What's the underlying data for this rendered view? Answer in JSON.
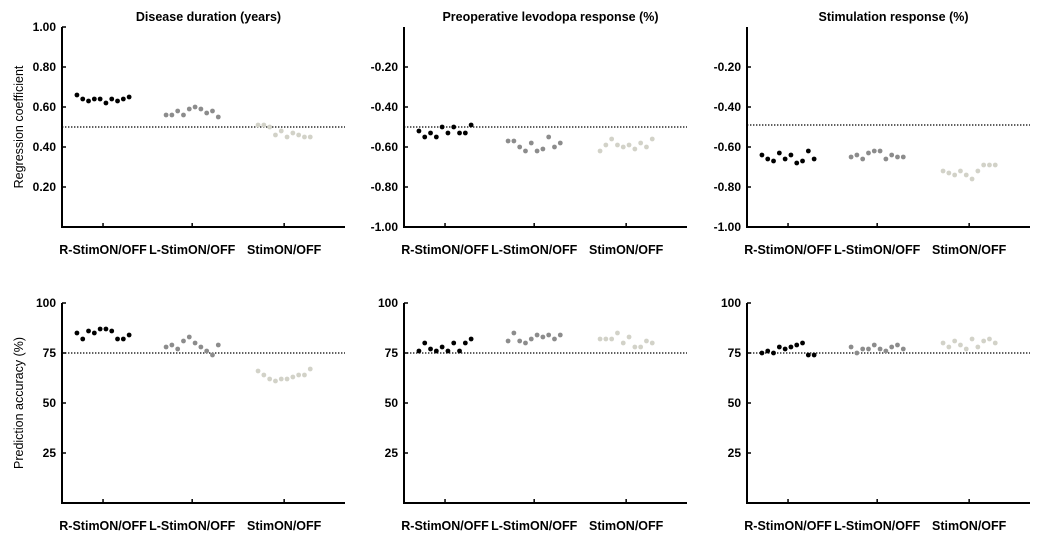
{
  "colors": {
    "R-StimON/OFF": "#000000",
    "L-StimON/OFF": "#8c8c8c",
    "StimON/OFF": "#d2d2c8",
    "axis": "#000000"
  },
  "chart_data": [
    {
      "type": "scatter",
      "row": 0,
      "col": 0,
      "title": "Disease duration (years)",
      "ylabel": "Regression coefficient",
      "ylim": [
        0,
        1.0
      ],
      "yticks": [
        0.2,
        0.4,
        0.6,
        0.8,
        1.0
      ],
      "ytick_labels": [
        "0.20",
        "0.40",
        "0.60",
        "0.80",
        "1.00"
      ],
      "categories": [
        "R-StimON/OFF",
        "L-StimON/OFF",
        "StimON/OFF"
      ],
      "reference_line": 0.5,
      "series": [
        {
          "name": "R-StimON/OFF",
          "values": [
            0.66,
            0.64,
            0.63,
            0.64,
            0.64,
            0.62,
            0.64,
            0.63,
            0.64,
            0.65
          ]
        },
        {
          "name": "L-StimON/OFF",
          "values": [
            0.56,
            0.56,
            0.58,
            0.56,
            0.59,
            0.6,
            0.59,
            0.57,
            0.58,
            0.55
          ]
        },
        {
          "name": "StimON/OFF",
          "values": [
            0.51,
            0.51,
            0.5,
            0.46,
            0.48,
            0.45,
            0.47,
            0.46,
            0.45,
            0.45
          ]
        }
      ]
    },
    {
      "type": "scatter",
      "row": 0,
      "col": 1,
      "title": "Preoperative levodopa response (%)",
      "ylabel": "",
      "ylim": [
        -1.0,
        0
      ],
      "yticks": [
        -1.0,
        -0.8,
        -0.6,
        -0.4,
        -0.2
      ],
      "ytick_labels": [
        "-1.00",
        "-0.80",
        "-0.60",
        "-0.40",
        "-0.20"
      ],
      "categories": [
        "R-StimON/OFF",
        "L-StimON/OFF",
        "StimON/OFF"
      ],
      "reference_line": -0.5,
      "series": [
        {
          "name": "R-StimON/OFF",
          "values": [
            -0.52,
            -0.55,
            -0.53,
            -0.55,
            -0.5,
            -0.53,
            -0.5,
            -0.53,
            -0.53,
            -0.49
          ]
        },
        {
          "name": "L-StimON/OFF",
          "values": [
            -0.57,
            -0.57,
            -0.6,
            -0.62,
            -0.58,
            -0.62,
            -0.61,
            -0.55,
            -0.6,
            -0.58
          ]
        },
        {
          "name": "StimON/OFF",
          "values": [
            -0.62,
            -0.59,
            -0.56,
            -0.59,
            -0.6,
            -0.59,
            -0.61,
            -0.58,
            -0.6,
            -0.56
          ]
        }
      ]
    },
    {
      "type": "scatter",
      "row": 0,
      "col": 2,
      "title": "Stimulation response (%)",
      "ylabel": "",
      "ylim": [
        -1.0,
        0
      ],
      "yticks": [
        -1.0,
        -0.8,
        -0.6,
        -0.4,
        -0.2
      ],
      "ytick_labels": [
        "-1.00",
        "-0.80",
        "-0.60",
        "-0.40",
        "-0.20"
      ],
      "categories": [
        "R-StimON/OFF",
        "L-StimON/OFF",
        "StimON/OFF"
      ],
      "reference_line": -0.49,
      "series": [
        {
          "name": "R-StimON/OFF",
          "values": [
            -0.64,
            -0.66,
            -0.67,
            -0.63,
            -0.66,
            -0.64,
            -0.68,
            -0.67,
            -0.62,
            -0.66
          ]
        },
        {
          "name": "L-StimON/OFF",
          "values": [
            -0.65,
            -0.64,
            -0.66,
            -0.63,
            -0.62,
            -0.62,
            -0.66,
            -0.64,
            -0.65,
            -0.65
          ]
        },
        {
          "name": "StimON/OFF",
          "values": [
            -0.72,
            -0.73,
            -0.74,
            -0.72,
            -0.74,
            -0.76,
            -0.72,
            -0.69,
            -0.69,
            -0.69
          ]
        }
      ]
    },
    {
      "type": "scatter",
      "row": 1,
      "col": 0,
      "title": "",
      "ylabel": "Prediction accuracy (%)",
      "ylim": [
        0,
        100
      ],
      "yticks": [
        25,
        50,
        75,
        100
      ],
      "ytick_labels": [
        "25",
        "50",
        "75",
        "100"
      ],
      "categories": [
        "R-StimON/OFF",
        "L-StimON/OFF",
        "StimON/OFF"
      ],
      "reference_line": 75,
      "series": [
        {
          "name": "R-StimON/OFF",
          "values": [
            85,
            82,
            86,
            85,
            87,
            87,
            86,
            82,
            82,
            84
          ]
        },
        {
          "name": "L-StimON/OFF",
          "values": [
            78,
            79,
            77,
            81,
            83,
            80,
            78,
            76,
            74,
            79
          ]
        },
        {
          "name": "StimON/OFF",
          "values": [
            66,
            64,
            62,
            61,
            62,
            62,
            63,
            64,
            64,
            67
          ]
        }
      ]
    },
    {
      "type": "scatter",
      "row": 1,
      "col": 1,
      "title": "",
      "ylabel": "",
      "ylim": [
        0,
        100
      ],
      "yticks": [
        25,
        50,
        75,
        100
      ],
      "ytick_labels": [
        "25",
        "50",
        "75",
        "100"
      ],
      "categories": [
        "R-StimON/OFF",
        "L-StimON/OFF",
        "StimON/OFF"
      ],
      "reference_line": 75,
      "series": [
        {
          "name": "R-StimON/OFF",
          "values": [
            76,
            80,
            77,
            76,
            78,
            76,
            80,
            76,
            80,
            82
          ]
        },
        {
          "name": "L-StimON/OFF",
          "values": [
            81,
            85,
            81,
            80,
            82,
            84,
            83,
            84,
            82,
            84
          ]
        },
        {
          "name": "StimON/OFF",
          "values": [
            82,
            82,
            82,
            85,
            80,
            83,
            78,
            78,
            81,
            80
          ]
        }
      ]
    },
    {
      "type": "scatter",
      "row": 1,
      "col": 2,
      "title": "",
      "ylabel": "",
      "ylim": [
        0,
        100
      ],
      "yticks": [
        25,
        50,
        75,
        100
      ],
      "ytick_labels": [
        "25",
        "50",
        "75",
        "100"
      ],
      "categories": [
        "R-StimON/OFF",
        "L-StimON/OFF",
        "StimON/OFF"
      ],
      "reference_line": 75,
      "series": [
        {
          "name": "R-StimON/OFF",
          "values": [
            75,
            76,
            75,
            78,
            77,
            78,
            79,
            80,
            74,
            74
          ]
        },
        {
          "name": "L-StimON/OFF",
          "values": [
            78,
            75,
            77,
            77,
            79,
            77,
            76,
            78,
            79,
            77
          ]
        },
        {
          "name": "StimON/OFF",
          "values": [
            80,
            78,
            81,
            79,
            77,
            82,
            78,
            81,
            82,
            80
          ]
        }
      ]
    }
  ]
}
